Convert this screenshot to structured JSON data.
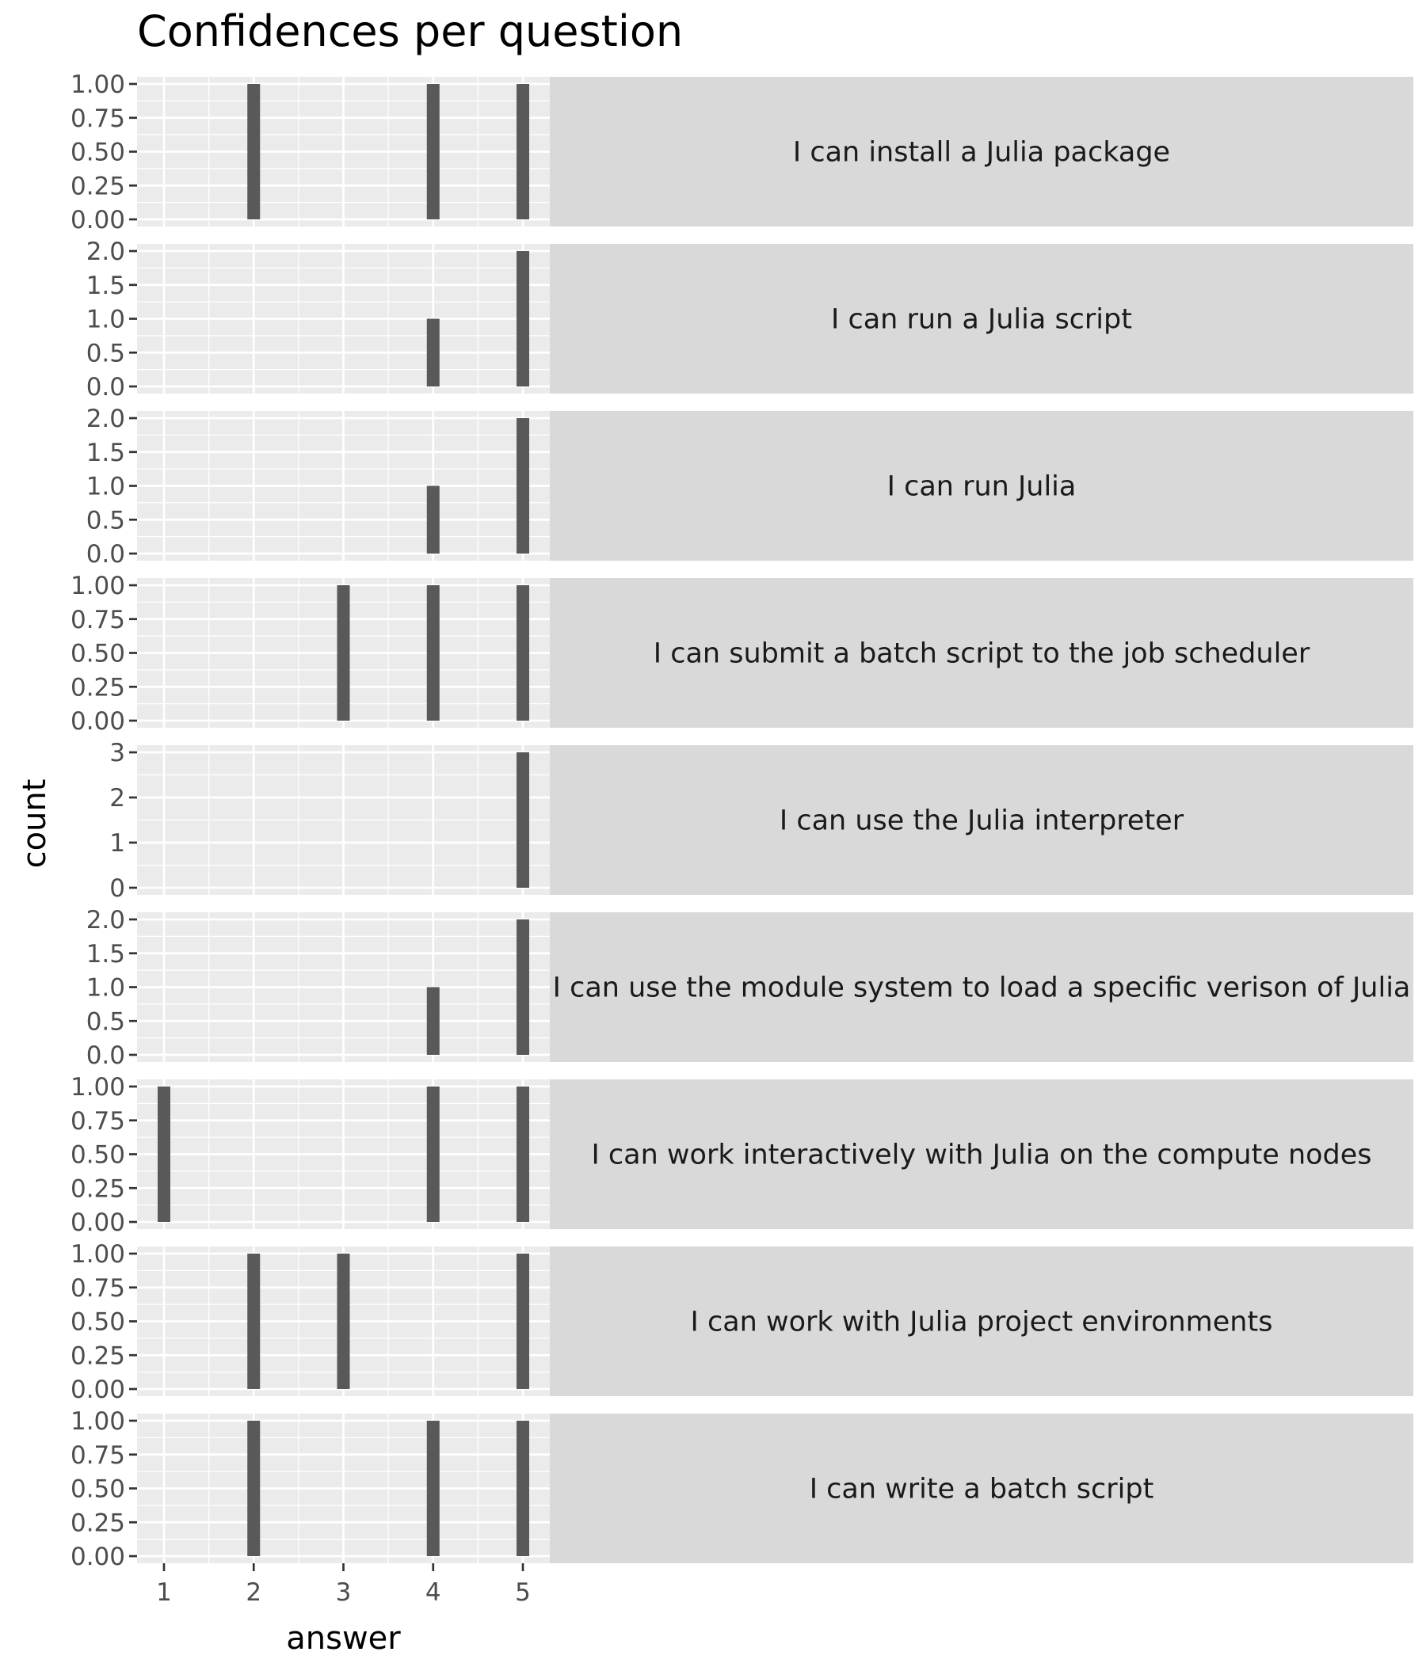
{
  "chart_data": {
    "type": "bar",
    "title": "Confidences per question",
    "xlabel": "answer",
    "ylabel": "count",
    "x_ticks": [
      1,
      2,
      3,
      4,
      5
    ],
    "xlim": [
      0.7,
      5.3
    ],
    "grid": true,
    "colors": {
      "bar": "#595959",
      "panel": "#ebebeb",
      "strip": "#d9d9d9",
      "grid": "#ffffff"
    },
    "facets": [
      {
        "label": "I can install a Julia package",
        "ylim": [
          0,
          1
        ],
        "y_ticks": [
          "0.00",
          "0.25",
          "0.50",
          "0.75",
          "1.00"
        ],
        "bars": [
          {
            "x": 2,
            "count": 1
          },
          {
            "x": 4,
            "count": 1
          },
          {
            "x": 5,
            "count": 1
          }
        ]
      },
      {
        "label": "I can run a Julia script",
        "ylim": [
          0,
          2
        ],
        "y_ticks": [
          "0.0",
          "0.5",
          "1.0",
          "1.5",
          "2.0"
        ],
        "bars": [
          {
            "x": 4,
            "count": 1
          },
          {
            "x": 5,
            "count": 2
          }
        ]
      },
      {
        "label": "I can run Julia",
        "ylim": [
          0,
          2
        ],
        "y_ticks": [
          "0.0",
          "0.5",
          "1.0",
          "1.5",
          "2.0"
        ],
        "bars": [
          {
            "x": 4,
            "count": 1
          },
          {
            "x": 5,
            "count": 2
          }
        ]
      },
      {
        "label": "I can submit a batch script to the job scheduler",
        "ylim": [
          0,
          1
        ],
        "y_ticks": [
          "0.00",
          "0.25",
          "0.50",
          "0.75",
          "1.00"
        ],
        "bars": [
          {
            "x": 3,
            "count": 1
          },
          {
            "x": 4,
            "count": 1
          },
          {
            "x": 5,
            "count": 1
          }
        ]
      },
      {
        "label": "I can use the Julia interpreter",
        "ylim": [
          0,
          3
        ],
        "y_ticks": [
          "0",
          "1",
          "2",
          "3"
        ],
        "bars": [
          {
            "x": 5,
            "count": 3
          }
        ]
      },
      {
        "label": "I can use the module system to load a specific verison of Julia",
        "ylim": [
          0,
          2
        ],
        "y_ticks": [
          "0.0",
          "0.5",
          "1.0",
          "1.5",
          "2.0"
        ],
        "bars": [
          {
            "x": 4,
            "count": 1
          },
          {
            "x": 5,
            "count": 2
          }
        ]
      },
      {
        "label": "I can work interactively with Julia on the compute nodes",
        "ylim": [
          0,
          1
        ],
        "y_ticks": [
          "0.00",
          "0.25",
          "0.50",
          "0.75",
          "1.00"
        ],
        "bars": [
          {
            "x": 1,
            "count": 1
          },
          {
            "x": 4,
            "count": 1
          },
          {
            "x": 5,
            "count": 1
          }
        ]
      },
      {
        "label": "I can work with Julia project environments",
        "ylim": [
          0,
          1
        ],
        "y_ticks": [
          "0.00",
          "0.25",
          "0.50",
          "0.75",
          "1.00"
        ],
        "bars": [
          {
            "x": 2,
            "count": 1
          },
          {
            "x": 3,
            "count": 1
          },
          {
            "x": 5,
            "count": 1
          }
        ]
      },
      {
        "label": "I can write a batch script",
        "ylim": [
          0,
          1
        ],
        "y_ticks": [
          "0.00",
          "0.25",
          "0.50",
          "0.75",
          "1.00"
        ],
        "bars": [
          {
            "x": 2,
            "count": 1
          },
          {
            "x": 4,
            "count": 1
          },
          {
            "x": 5,
            "count": 1
          }
        ]
      }
    ]
  }
}
